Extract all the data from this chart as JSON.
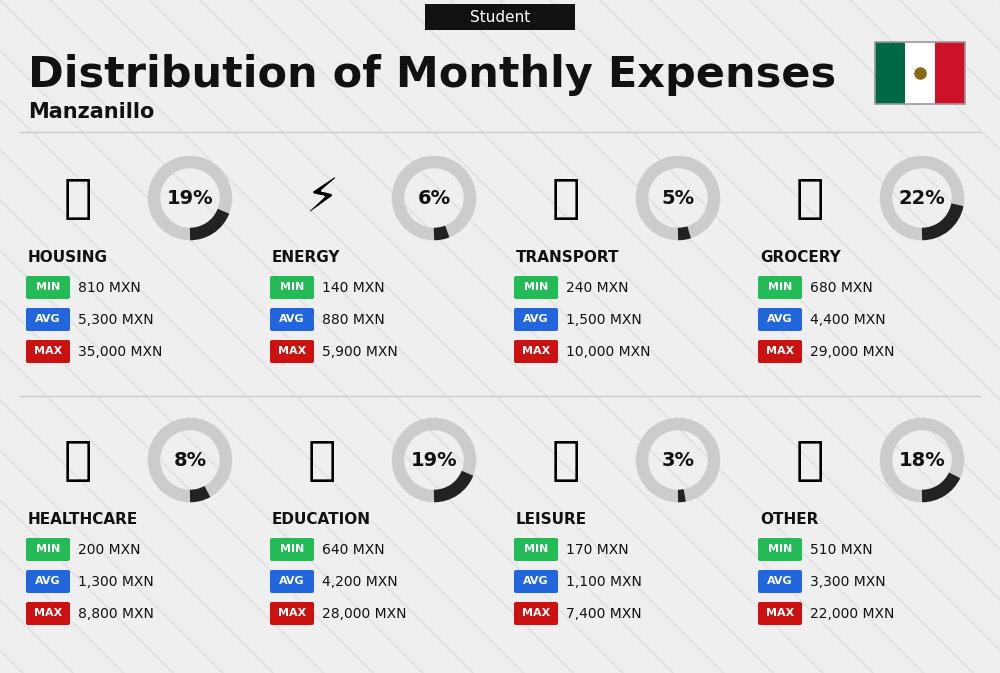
{
  "title": "Distribution of Monthly Expenses",
  "subtitle": "Student",
  "city": "Manzanillo",
  "background_color": "#efefef",
  "categories": [
    {
      "name": "HOUSING",
      "percent": 19,
      "min": "810 MXN",
      "avg": "5,300 MXN",
      "max": "35,000 MXN",
      "row": 0,
      "col": 0
    },
    {
      "name": "ENERGY",
      "percent": 6,
      "min": "140 MXN",
      "avg": "880 MXN",
      "max": "5,900 MXN",
      "row": 0,
      "col": 1
    },
    {
      "name": "TRANSPORT",
      "percent": 5,
      "min": "240 MXN",
      "avg": "1,500 MXN",
      "max": "10,000 MXN",
      "row": 0,
      "col": 2
    },
    {
      "name": "GROCERY",
      "percent": 22,
      "min": "680 MXN",
      "avg": "4,400 MXN",
      "max": "29,000 MXN",
      "row": 0,
      "col": 3
    },
    {
      "name": "HEALTHCARE",
      "percent": 8,
      "min": "200 MXN",
      "avg": "1,300 MXN",
      "max": "8,800 MXN",
      "row": 1,
      "col": 0
    },
    {
      "name": "EDUCATION",
      "percent": 19,
      "min": "640 MXN",
      "avg": "4,200 MXN",
      "max": "28,000 MXN",
      "row": 1,
      "col": 1
    },
    {
      "name": "LEISURE",
      "percent": 3,
      "min": "170 MXN",
      "avg": "1,100 MXN",
      "max": "7,400 MXN",
      "row": 1,
      "col": 2
    },
    {
      "name": "OTHER",
      "percent": 18,
      "min": "510 MXN",
      "avg": "3,300 MXN",
      "max": "22,000 MXN",
      "row": 1,
      "col": 3
    }
  ],
  "min_color": "#22bb55",
  "avg_color": "#2266dd",
  "max_color": "#cc1111",
  "value_text_color": "#111111",
  "category_name_color": "#111111",
  "percent_color": "#111111",
  "circle_dark_color": "#222222",
  "circle_light_color": "#cccccc",
  "title_color": "#111111",
  "subtitle_bg": "#111111",
  "subtitle_text_color": "#ffffff",
  "flag_green": "#006847",
  "flag_white": "#ffffff",
  "flag_red": "#CE1126",
  "stripe_color": "#d9d9d9",
  "divider_color": "#cccccc"
}
